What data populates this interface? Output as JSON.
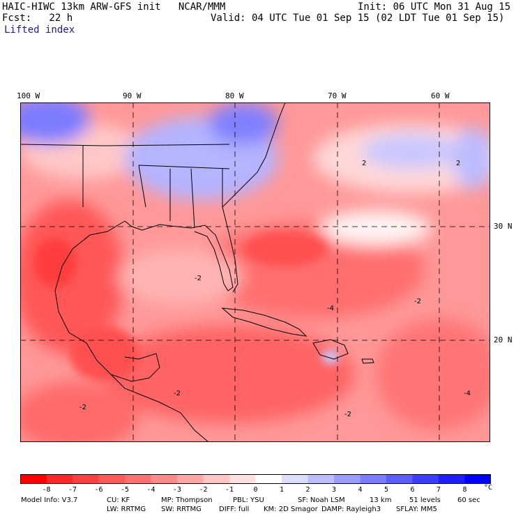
{
  "header": {
    "model_line": "HAIC-HIWC 13km ARW-GFS init   NCAR/MMM",
    "fcst_line": "Fcst:   22 h",
    "field_name": "Lifted index",
    "init_line": "Init: 06 UTC Mon 31 Aug 15",
    "valid_line": "Valid: 04 UTC Tue 01 Sep 15 (02 LDT Tue 01 Sep 15)"
  },
  "map": {
    "lon_labels": [
      "100 W",
      "90 W",
      "80 W",
      "70 W",
      "60 W"
    ],
    "lat_labels": [
      "30 N",
      "20 N"
    ],
    "contour_labels": [
      "-2",
      "-4",
      "2"
    ]
  },
  "colorbar": {
    "ticks": [
      "-8",
      "-7",
      "-6",
      "-5",
      "-4",
      "-3",
      "-2",
      "-1",
      "0",
      "1",
      "2",
      "3",
      "4",
      "5",
      "6",
      "7",
      "8"
    ],
    "unit": "°C",
    "colors": [
      "#ff0000",
      "#ff2828",
      "#ff4040",
      "#ff5a5a",
      "#ff7070",
      "#ff8a8a",
      "#ffa6a6",
      "#ffc4c4",
      "#ffe0e0",
      "#ffffff",
      "#dcdcff",
      "#bcbcff",
      "#9c9cff",
      "#7c7cff",
      "#5c5cff",
      "#3c3cff",
      "#1e1eff",
      "#0000ff"
    ]
  },
  "model_info": {
    "row1": [
      "Model Info: V3.7",
      "CU: KF",
      "MP: Thompson",
      "PBL: YSU",
      "SF: Noah LSM",
      "13 km",
      "51 levels",
      "60 sec"
    ],
    "row2": [
      "LW: RRTMG",
      "SW: RRTMG",
      "DIFF: full",
      "KM: 2D Smagor",
      "DAMP: Rayleigh3",
      "SFLAY: MM5"
    ]
  }
}
